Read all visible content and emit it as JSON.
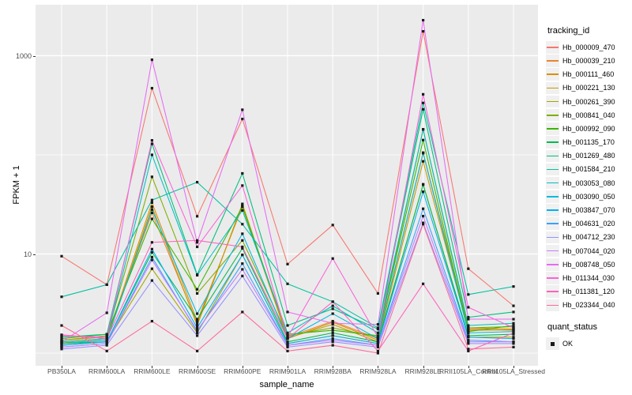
{
  "figure": {
    "ylabel": "FPKM + 1",
    "xlabel": "sample_name"
  },
  "legend": {
    "tracking_title": "tracking_id",
    "quant_title": "quant_status",
    "quant_items": [
      {
        "label": "OK",
        "marker": "black-square"
      }
    ]
  },
  "chart_data": {
    "type": "line",
    "title": "",
    "xlabel": "sample_name",
    "ylabel": "FPKM + 1",
    "y_scale": "log10",
    "ylim": [
      1,
      2400
    ],
    "y_ticks": [
      {
        "label": "1000",
        "value": 1000
      },
      {
        "label": "10",
        "value": 10
      }
    ],
    "y_gridlines_major": [
      1000,
      10
    ],
    "y_gridlines_minor": [
      100,
      1
    ],
    "grid": "on",
    "panel_bg": "#EBEBEB",
    "grid_color": "#FFFFFF",
    "point_color": "#1A1A1A",
    "legend_position": "right",
    "categories": [
      "PB350LA",
      "RRIM600LA",
      "RRIM600LE",
      "RRIM600SE",
      "RRIM600PE",
      "RRIM901LA",
      "RRIM928BA",
      "RRIM928LA",
      "RRIM928LE",
      "RRII105LA_Control",
      "RRII105LA_Stressed"
    ],
    "quant_status_all": "OK",
    "series": [
      {
        "name": "Hb_000009_470",
        "color": "#F8766D",
        "values": [
          9.5,
          4.9,
          470,
          24,
          230,
          7.9,
          19.6,
          4.0,
          1760,
          7.1,
          3.0
        ]
      },
      {
        "name": "Hb_000039_210",
        "color": "#EA8331",
        "values": [
          1.35,
          1.45,
          26,
          2.0,
          31,
          1.45,
          2.1,
          1.4,
          104,
          1.75,
          1.7
        ]
      },
      {
        "name": "Hb_000111_460",
        "color": "#D89000",
        "values": [
          1.3,
          1.4,
          33,
          2.1,
          30,
          1.4,
          2.05,
          1.35,
          105,
          1.8,
          1.75
        ]
      },
      {
        "name": "Hb_000221_130",
        "color": "#C09B00",
        "values": [
          1.27,
          1.35,
          30,
          1.9,
          32,
          1.42,
          1.95,
          1.3,
          86,
          1.7,
          1.72
        ]
      },
      {
        "name": "Hb_000261_390",
        "color": "#A3A500",
        "values": [
          1.2,
          1.3,
          7.1,
          1.6,
          9.8,
          1.25,
          1.5,
          1.25,
          50.5,
          1.45,
          1.45
        ]
      },
      {
        "name": "Hb_000841_040",
        "color": "#7CAE00",
        "values": [
          1.35,
          1.5,
          60,
          4.0,
          13.7,
          1.5,
          1.8,
          1.45,
          181,
          1.8,
          1.85
        ]
      },
      {
        "name": "Hb_000992_090",
        "color": "#39B600",
        "values": [
          1.4,
          1.55,
          22.6,
          4.4,
          30,
          1.55,
          1.7,
          1.5,
          141,
          1.65,
          1.9
        ]
      },
      {
        "name": "Hb_001135_170",
        "color": "#00BB4E",
        "values": [
          1.25,
          1.3,
          10.4,
          2.2,
          11.4,
          1.3,
          1.6,
          1.3,
          50,
          1.5,
          1.55
        ]
      },
      {
        "name": "Hb_001269_480",
        "color": "#00BF7D",
        "values": [
          1.45,
          1.55,
          129,
          6.2,
          65,
          1.9,
          2.8,
          1.75,
          288,
          2.3,
          2.6
        ]
      },
      {
        "name": "Hb_001584_210",
        "color": "#00C1A3",
        "values": [
          3.7,
          4.9,
          35,
          53,
          20,
          5.0,
          3.3,
          1.8,
          334,
          3.9,
          4.7
        ]
      },
      {
        "name": "Hb_003053_080",
        "color": "#00BFC4",
        "values": [
          1.3,
          1.4,
          100,
          6.1,
          27.5,
          1.6,
          3.0,
          1.6,
          180,
          1.9,
          2.0
        ]
      },
      {
        "name": "Hb_003090_050",
        "color": "#00BAE0",
        "values": [
          1.25,
          1.35,
          28,
          2.5,
          16,
          1.4,
          2.5,
          1.4,
          105,
          1.6,
          1.65
        ]
      },
      {
        "name": "Hb_003847_070",
        "color": "#00B0F6",
        "values": [
          1.2,
          1.3,
          11.2,
          1.8,
          9.8,
          1.25,
          1.5,
          1.25,
          42.4,
          1.45,
          1.4
        ]
      },
      {
        "name": "Hb_004631_020",
        "color": "#35A2FF",
        "values": [
          1.15,
          1.25,
          9.3,
          1.65,
          8.0,
          1.2,
          1.4,
          1.2,
          28.6,
          1.35,
          1.3
        ]
      },
      {
        "name": "Hb_004712_230",
        "color": "#9590FF",
        "values": [
          1.1,
          1.2,
          5.4,
          1.5,
          6.0,
          1.15,
          1.3,
          1.15,
          20.6,
          1.25,
          1.25
        ]
      },
      {
        "name": "Hb_007044_020",
        "color": "#C77CFF",
        "values": [
          1.15,
          1.25,
          8.7,
          1.7,
          7.0,
          1.2,
          1.35,
          1.2,
          24.1,
          1.3,
          1.3
        ]
      },
      {
        "name": "Hb_008748_050",
        "color": "#E76BF3",
        "values": [
          1.3,
          2.55,
          910,
          13.1,
          285,
          2.6,
          2.0,
          1.95,
          2280,
          2.2,
          2.2
        ]
      },
      {
        "name": "Hb_011344_030",
        "color": "#FA62DB",
        "values": [
          1.5,
          1.45,
          140,
          11.8,
          49,
          1.45,
          9.0,
          1.45,
          408,
          2.9,
          1.8
        ]
      },
      {
        "name": "Hb_011381_120",
        "color": "#FF62BC",
        "values": [
          1.53,
          1.4,
          13.1,
          13.7,
          11.8,
          1.4,
          3.3,
          1.05,
          5.0,
          1.05,
          1.6
        ]
      },
      {
        "name": "Hb_023344_040",
        "color": "#FF6A98",
        "values": [
          1.9,
          1.05,
          2.1,
          1.05,
          2.6,
          1.05,
          1.2,
          1.0,
          20,
          1.1,
          1.15
        ]
      }
    ]
  }
}
